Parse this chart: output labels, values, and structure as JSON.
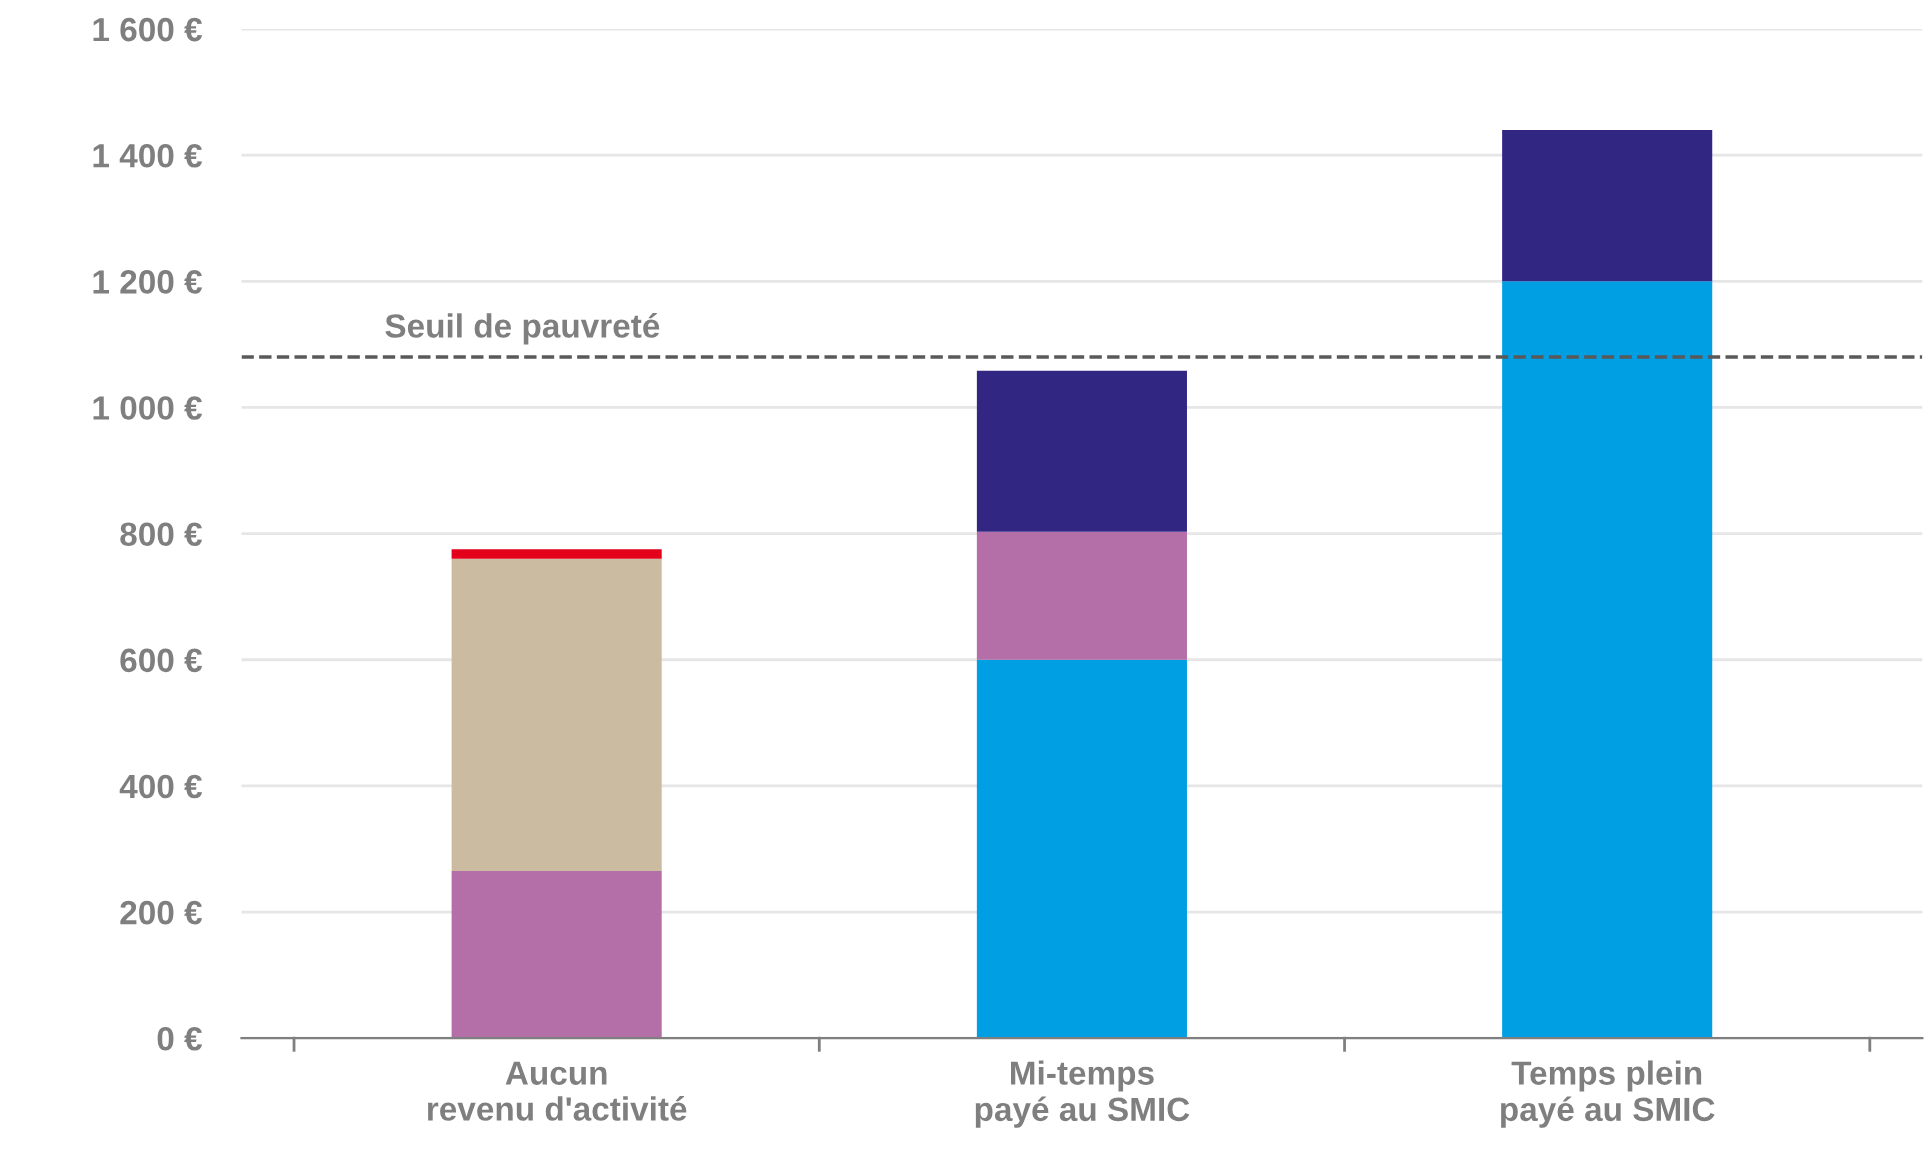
{
  "chart_data": {
    "type": "bar",
    "stacked": true,
    "categories": [
      "Aucun\nrevenu d'activité",
      "Mi-temps\npayé au SMIC",
      "Temps plein\npayé au SMIC"
    ],
    "series": [
      {
        "color": "#009fe3",
        "values": [
          null,
          600,
          1200
        ]
      },
      {
        "color": "#b56fa8",
        "values": [
          265,
          203,
          null
        ]
      },
      {
        "color": "#cbbba0",
        "values": [
          495,
          null,
          null
        ]
      },
      {
        "color": "#e2001a",
        "values": [
          15,
          null,
          null
        ]
      },
      {
        "color": "#312783",
        "values": [
          null,
          255,
          240
        ]
      }
    ],
    "ylim": [
      0,
      1600
    ],
    "yticks": [
      {
        "value": 0,
        "label": "0 €"
      },
      {
        "value": 200,
        "label": "200 €"
      },
      {
        "value": 400,
        "label": "400 €"
      },
      {
        "value": 600,
        "label": "600 €"
      },
      {
        "value": 800,
        "label": "800 €"
      },
      {
        "value": 1000,
        "label": "1 000 €"
      },
      {
        "value": 1200,
        "label": "1 200 €"
      },
      {
        "value": 1400,
        "label": "1 400 €"
      },
      {
        "value": 1600,
        "label": "1 600 €"
      }
    ],
    "grid": "y",
    "ref_lines": [
      {
        "axis": "y",
        "value": 1080,
        "label": "Seuil de pauvreté",
        "color": "#595959",
        "line_style": "dashed"
      }
    ]
  }
}
